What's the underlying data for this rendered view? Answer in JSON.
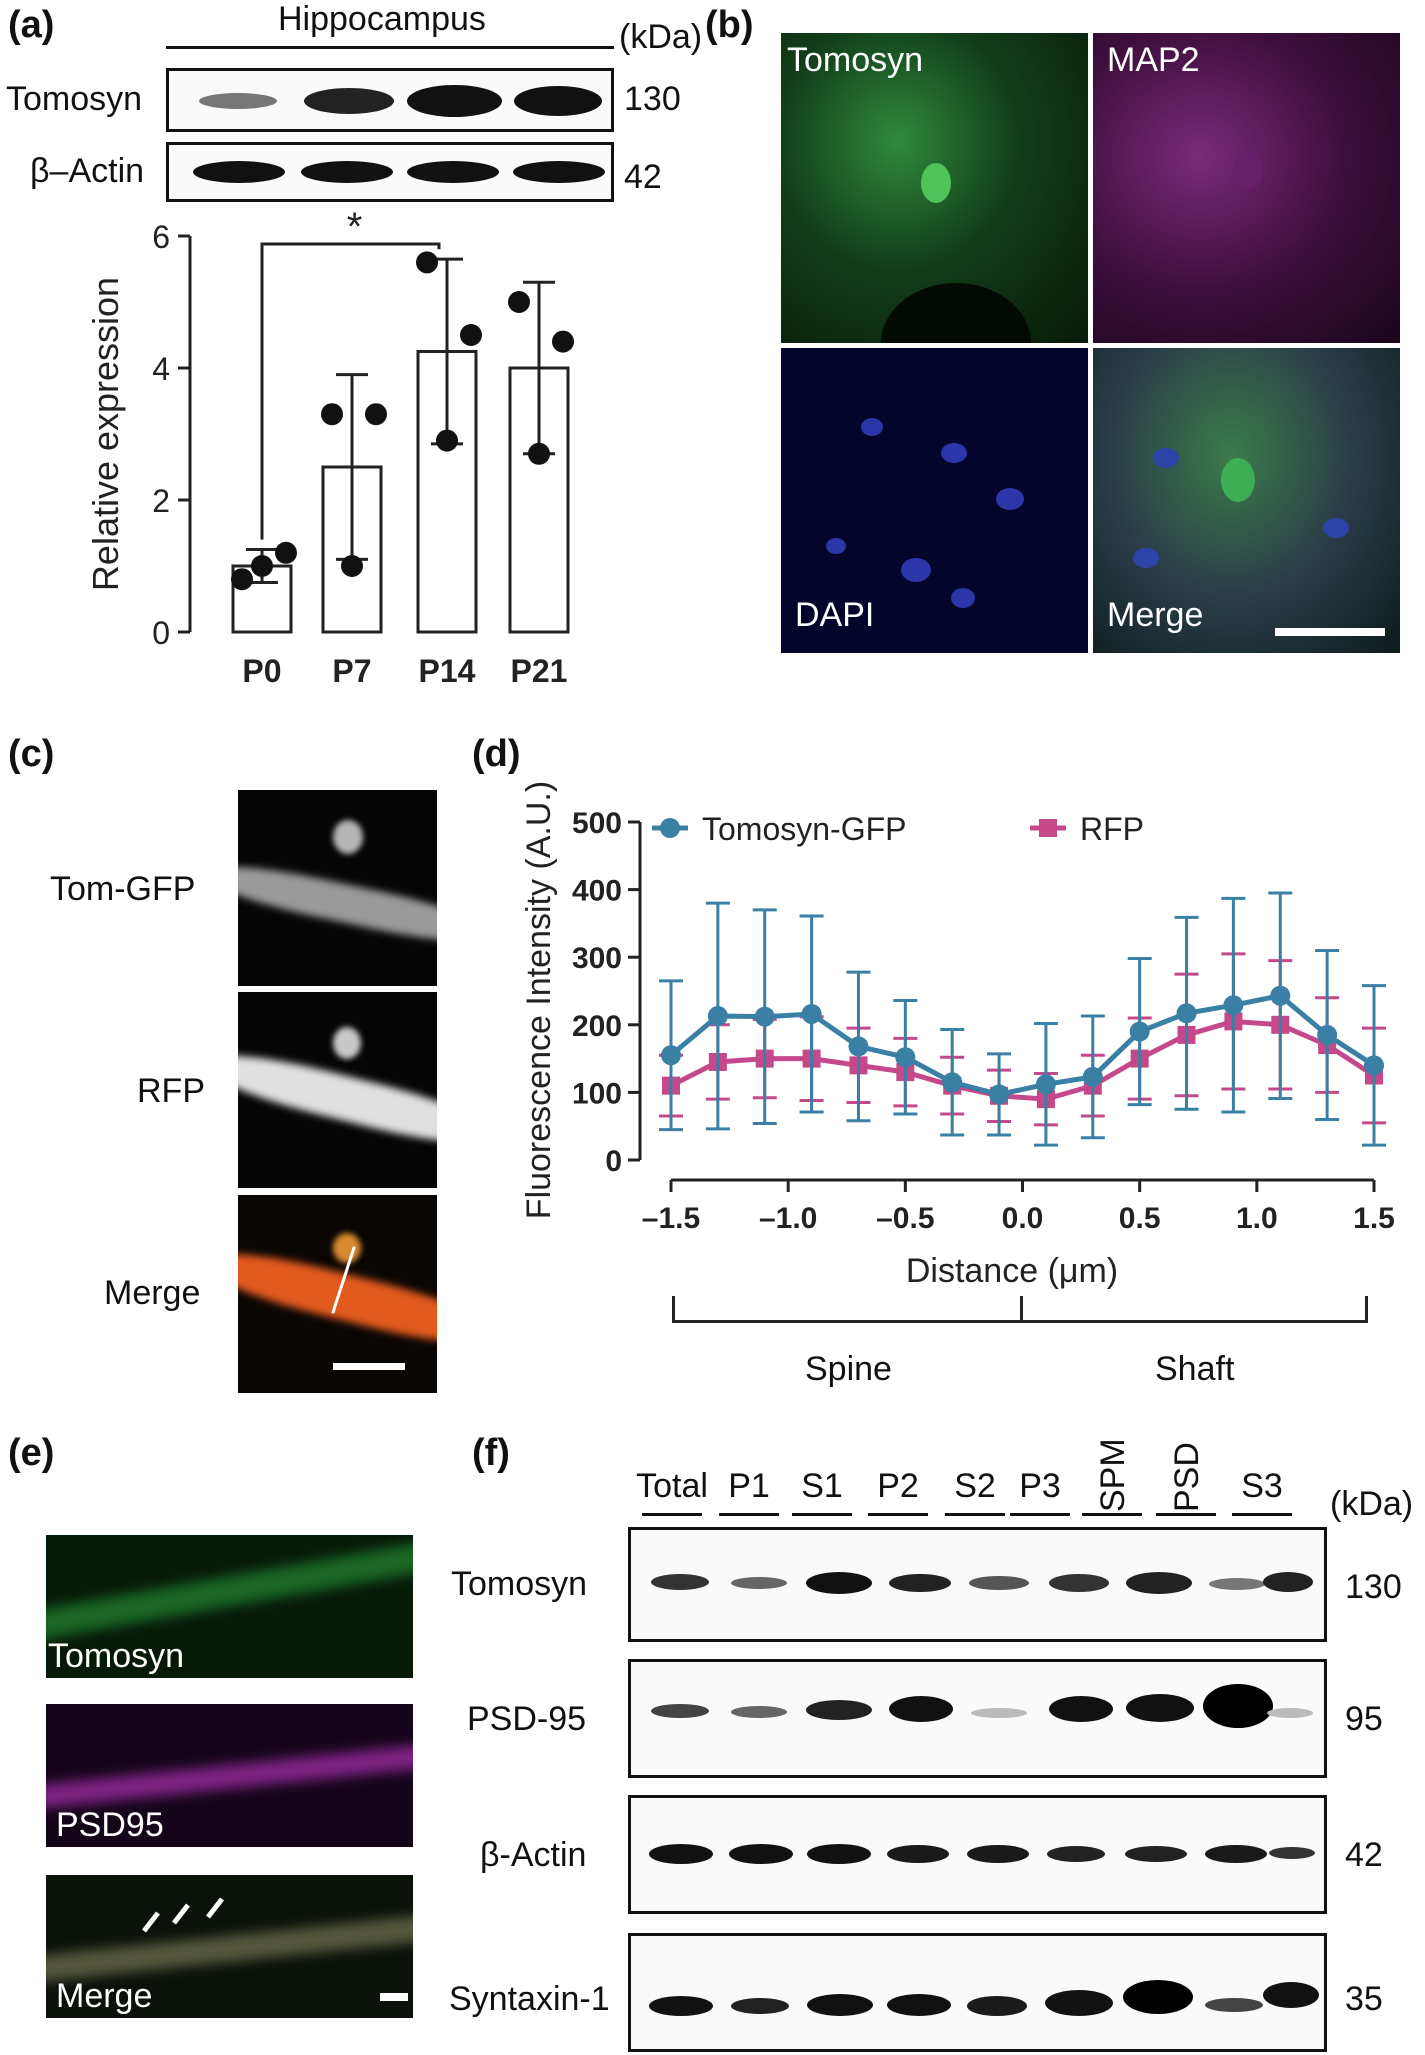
{
  "panels": {
    "a": "(a)",
    "b": "(b)",
    "c": "(c)",
    "d": "(d)",
    "e": "(e)",
    "f": "(f)"
  },
  "panel_a": {
    "region": "Hippocampus",
    "unit": "(kDa)",
    "rows": [
      {
        "label": "Tomosyn",
        "mw": "130"
      },
      {
        "label": "β–Actin",
        "mw": "42"
      }
    ],
    "significance": "*"
  },
  "panel_b": {
    "labels": [
      "Tomosyn",
      "MAP2",
      "DAPI",
      "Merge"
    ]
  },
  "panel_c": {
    "labels": [
      "Tom-GFP",
      "RFP",
      "Merge"
    ]
  },
  "panel_d": {
    "groups": [
      "Spine",
      "Shaft"
    ]
  },
  "panel_e": {
    "labels": [
      "Tomosyn",
      "PSD95",
      "Merge"
    ]
  },
  "panel_f": {
    "lanes": [
      "Total",
      "P1",
      "S1",
      "P2",
      "S2",
      "P3",
      "SPM",
      "PSD",
      "S3"
    ],
    "unit": "(kDa)",
    "rows": [
      {
        "label": "Tomosyn",
        "mw": "130"
      },
      {
        "label": "PSD-95",
        "mw": "95"
      },
      {
        "label": "β-Actin",
        "mw": "42"
      },
      {
        "label": "Syntaxin-1",
        "mw": "35"
      }
    ]
  },
  "chart_data": [
    {
      "type": "bar",
      "categories": [
        "P0",
        "P7",
        "P14",
        "P21"
      ],
      "values": [
        1.0,
        2.5,
        4.25,
        4.0
      ],
      "errors": [
        0.25,
        1.4,
        1.4,
        1.3
      ],
      "points": [
        [
          0.8,
          1.2,
          1.0
        ],
        [
          3.3,
          3.3,
          1.0
        ],
        [
          5.6,
          4.5,
          2.9
        ],
        [
          5.0,
          4.4,
          2.7
        ]
      ],
      "ylabel": "Relative expression",
      "ylim": [
        0,
        6
      ],
      "yticks": [
        "0",
        "2",
        "4",
        "6"
      ]
    },
    {
      "type": "line",
      "x": [
        -1.5,
        -1.3,
        -1.1,
        -0.9,
        -0.7,
        -0.5,
        -0.3,
        -0.1,
        0.1,
        0.3,
        0.5,
        0.7,
        0.9,
        1.1,
        1.3,
        1.5
      ],
      "series": [
        {
          "name": "Tomosyn-GFP",
          "color": "#3a7fa4",
          "values": [
            155,
            213,
            212,
            216,
            168,
            152,
            115,
            97,
            112,
            123,
            190,
            217,
            229,
            243,
            185,
            140
          ],
          "errors": [
            110,
            167,
            158,
            145,
            110,
            84,
            78,
            60,
            90,
            90,
            108,
            142,
            158,
            152,
            125,
            118
          ]
        },
        {
          "name": "RFP",
          "color": "#c5498a",
          "values": [
            110,
            145,
            150,
            150,
            140,
            130,
            110,
            95,
            90,
            110,
            150,
            185,
            205,
            200,
            170,
            125
          ],
          "errors": [
            45,
            55,
            58,
            62,
            55,
            50,
            42,
            38,
            38,
            45,
            60,
            90,
            100,
            95,
            70,
            70
          ]
        }
      ],
      "xlabel": "Distance  (μm)",
      "ylabel": "Fluorescence Intensity (A.U.)",
      "ylim": [
        0,
        500
      ],
      "yticks": [
        "0",
        "100",
        "200",
        "300",
        "400",
        "500"
      ],
      "xticks": [
        "–1.5",
        "–1.0",
        "–0.5",
        "0.0",
        "0.5",
        "1.0",
        "1.5"
      ],
      "legend": "top"
    }
  ]
}
